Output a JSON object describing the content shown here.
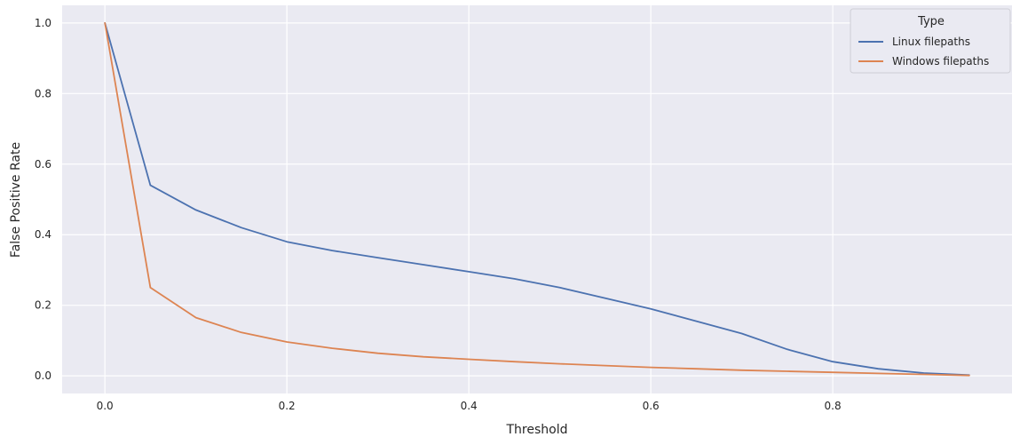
{
  "chart_data": {
    "type": "line",
    "xlabel": "Threshold",
    "ylabel": "False Positive Rate",
    "xlim": [
      -0.047,
      0.997
    ],
    "ylim": [
      -0.05,
      1.05
    ],
    "xticks": [
      0.0,
      0.2,
      0.4,
      0.6,
      0.8
    ],
    "xtick_labels": [
      "0.0",
      "0.2",
      "0.4",
      "0.6",
      "0.8"
    ],
    "yticks": [
      0.0,
      0.2,
      0.4,
      0.6,
      0.8,
      1.0
    ],
    "ytick_labels": [
      "0.0",
      "0.2",
      "0.4",
      "0.6",
      "0.8",
      "1.0"
    ],
    "grid": true,
    "legend": {
      "title": "Type",
      "placement": "top-right"
    },
    "x": [
      0.0,
      0.05,
      0.1,
      0.15,
      0.2,
      0.25,
      0.3,
      0.35,
      0.4,
      0.45,
      0.5,
      0.55,
      0.6,
      0.65,
      0.7,
      0.75,
      0.8,
      0.85,
      0.9,
      0.95
    ],
    "series": [
      {
        "name": "Linux filepaths",
        "color": "#4c72b0",
        "values": [
          1.0,
          0.54,
          0.47,
          0.42,
          0.38,
          0.355,
          0.335,
          0.315,
          0.295,
          0.275,
          0.25,
          0.22,
          0.19,
          0.155,
          0.12,
          0.075,
          0.04,
          0.02,
          0.008,
          0.002
        ]
      },
      {
        "name": "Windows filepaths",
        "color": "#dd8452",
        "values": [
          1.0,
          0.25,
          0.165,
          0.123,
          0.096,
          0.078,
          0.064,
          0.054,
          0.047,
          0.04,
          0.034,
          0.029,
          0.024,
          0.02,
          0.016,
          0.013,
          0.01,
          0.007,
          0.004,
          0.001
        ]
      }
    ]
  }
}
